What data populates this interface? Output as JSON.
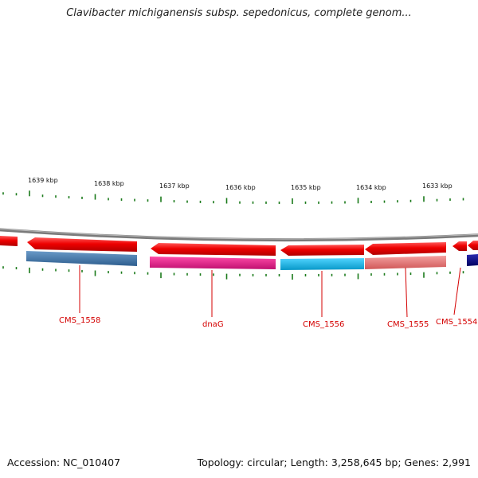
{
  "title": "Clavibacter michiganensis subsp. sepedonicus, complete genom...",
  "footer": {
    "accession": "Accession: NC_010407",
    "summary": "Topology: circular; Length: 3,258,645 bp; Genes: 2,991"
  },
  "kbp_labels": [
    "1639 kbp",
    "1638 kbp",
    "1637 kbp",
    "1636 kbp",
    "1635 kbp",
    "1634 kbp",
    "1633 kbp"
  ],
  "gene_labels": [
    "CMS_1558",
    "dnaG",
    "CMS_1556",
    "CMS_1555",
    "CMS_1554"
  ],
  "colors": {
    "backbone": "#7a7a7a",
    "gene_arrow": "#ee0000",
    "ticks": "#1a7a1a",
    "label": "#d40000",
    "cms_1558": "#4a7aaa",
    "dnag": "#e81880",
    "cms_1556": "#18b4e8",
    "cms_1555": "#e87878",
    "cms_1554": "#0a0a80"
  }
}
